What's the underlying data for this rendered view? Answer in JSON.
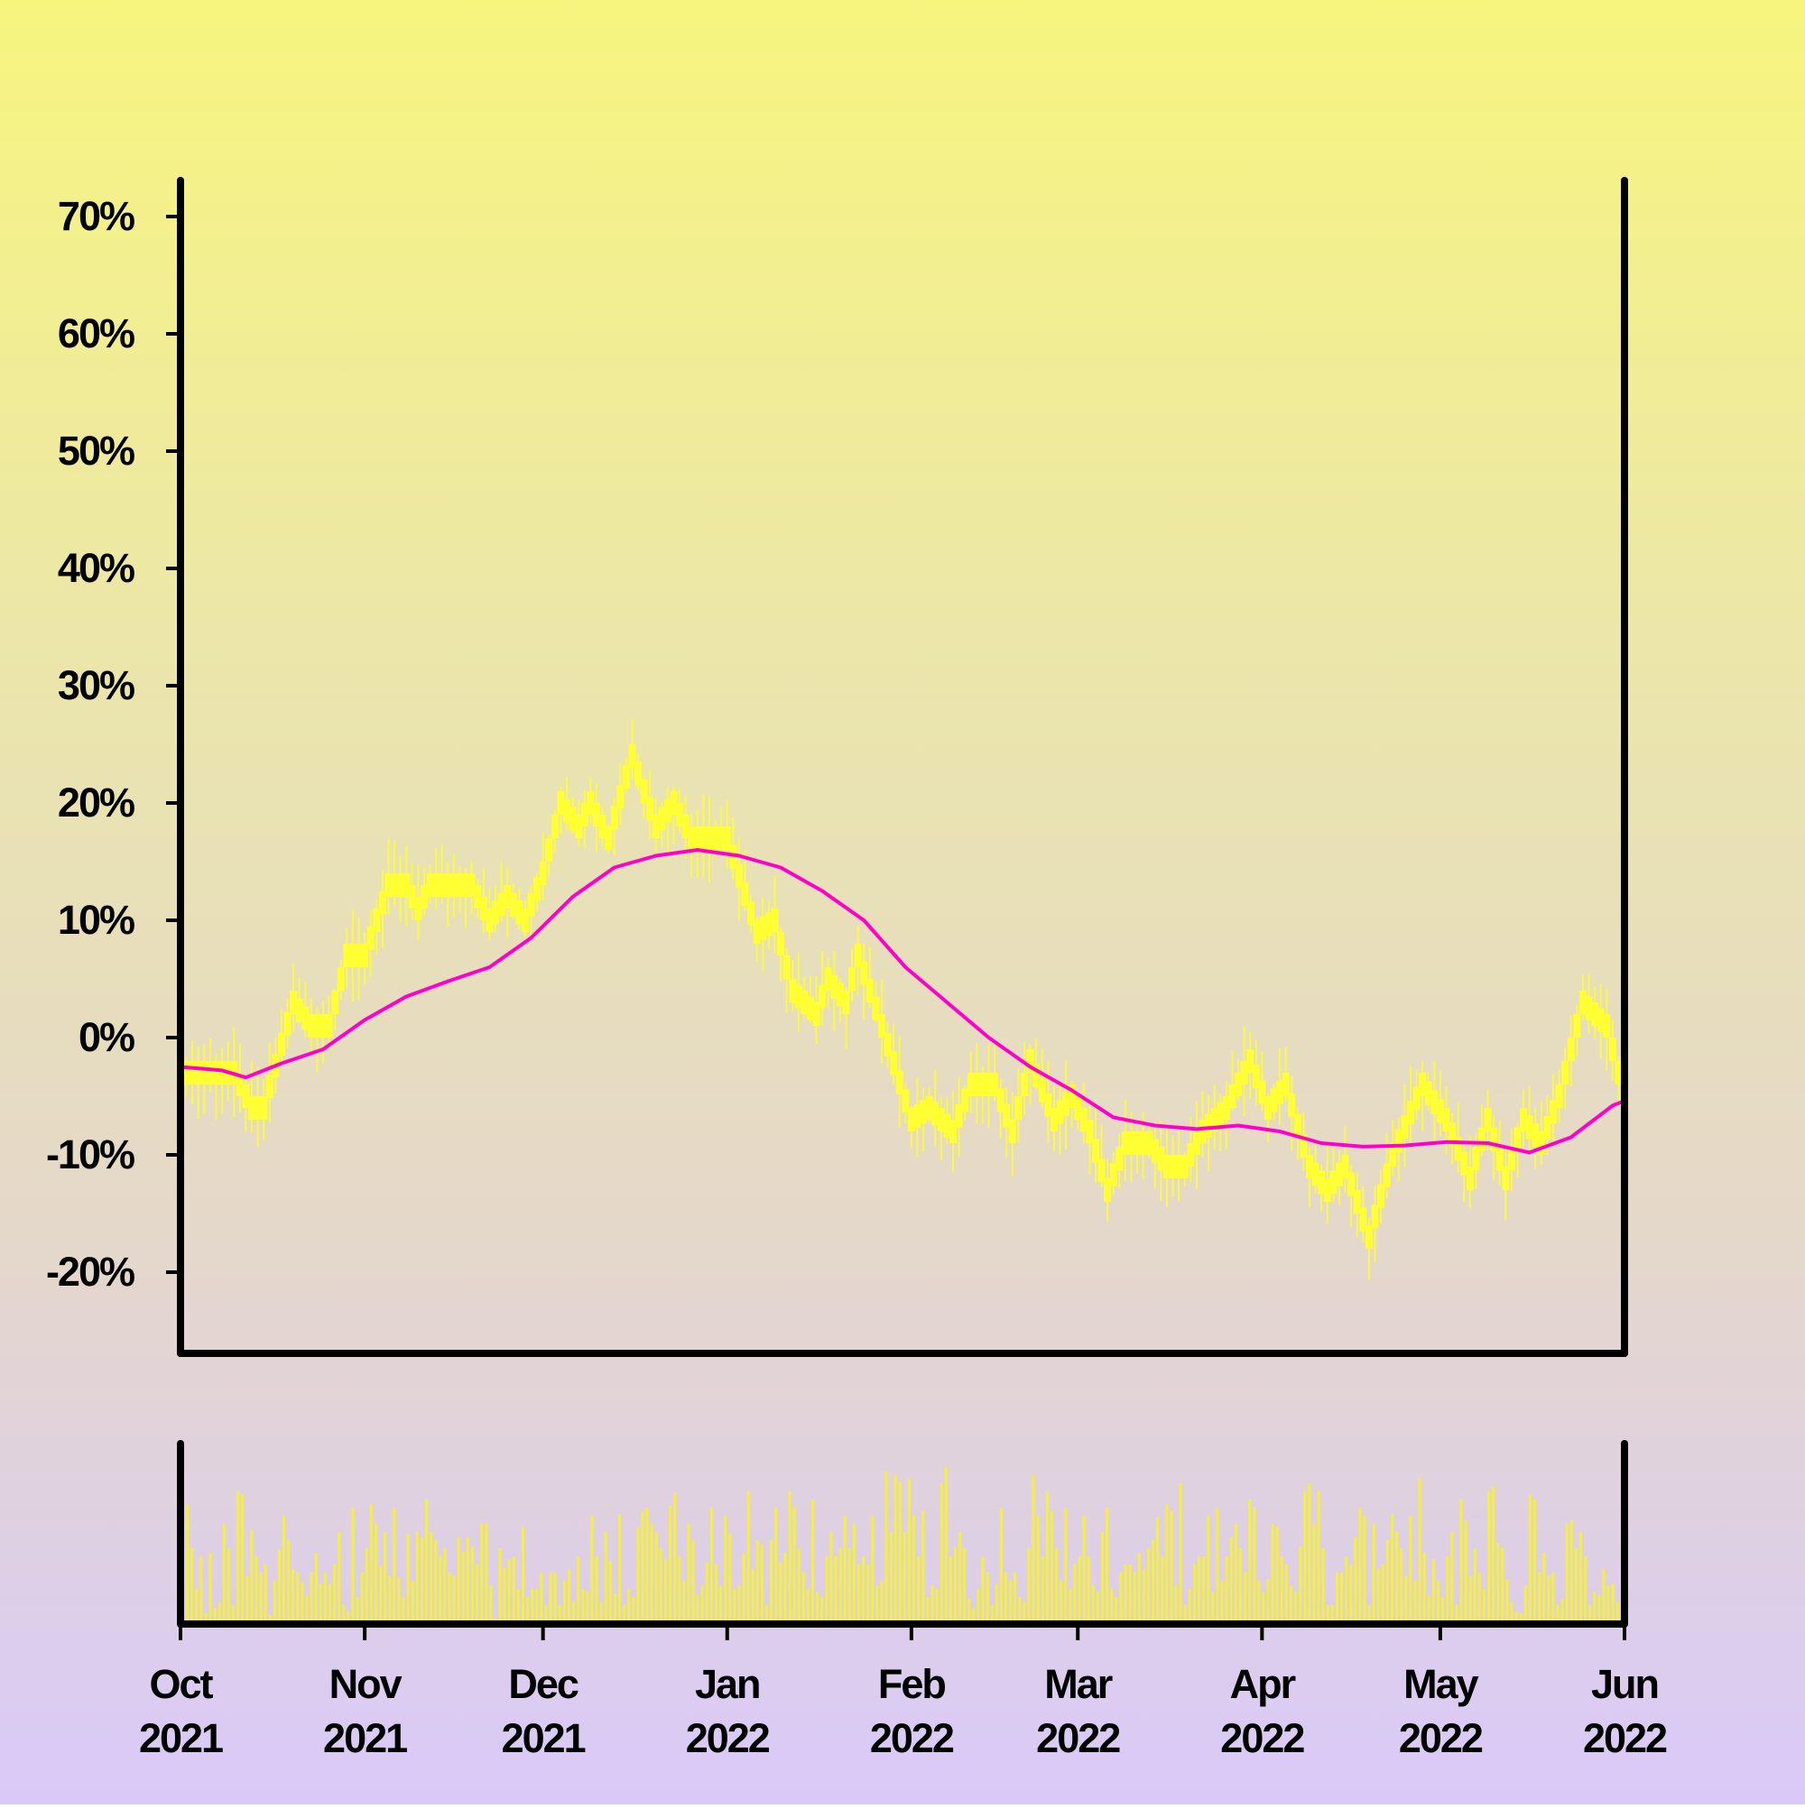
{
  "chart_data": {
    "type": "candlestick_with_volume",
    "y_unit": "%",
    "ylim": [
      -26,
      73
    ],
    "yticks": [
      -20,
      -10,
      0,
      10,
      20,
      30,
      40,
      50,
      60,
      70
    ],
    "ytick_labels": [
      "-20%",
      "-10%",
      "0%",
      "10%",
      "20%",
      "30%",
      "40%",
      "50%",
      "60%",
      "70%"
    ],
    "x_range": [
      "2021-10-01",
      "2022-06-01"
    ],
    "xticks": [
      {
        "date": "2021-10-01",
        "month": "Oct",
        "year": "2021"
      },
      {
        "date": "2021-11-01",
        "month": "Nov",
        "year": "2021"
      },
      {
        "date": "2021-12-01",
        "month": "Dec",
        "year": "2021"
      },
      {
        "date": "2022-01-01",
        "month": "Jan",
        "year": "2022"
      },
      {
        "date": "2022-02-01",
        "month": "Feb",
        "year": "2022"
      },
      {
        "date": "2022-03-01",
        "month": "Mar",
        "year": "2022"
      },
      {
        "date": "2022-04-01",
        "month": "Apr",
        "year": "2022"
      },
      {
        "date": "2022-05-01",
        "month": "May",
        "year": "2022"
      },
      {
        "date": "2022-06-01",
        "month": "Jun",
        "year": "2022"
      }
    ],
    "grid": false,
    "colors": {
      "price": "#ffff33",
      "moving_average": "#ff00cc",
      "volume": "#f4f03c",
      "axes": "#000000"
    },
    "price_series": {
      "name": "",
      "points": [
        {
          "date": "2021-10-01",
          "value": -3
        },
        {
          "date": "2021-10-10",
          "value": -3
        },
        {
          "date": "2021-10-13",
          "value": -6
        },
        {
          "date": "2021-10-15",
          "value": -6
        },
        {
          "date": "2021-10-20",
          "value": 3
        },
        {
          "date": "2021-10-23",
          "value": 1
        },
        {
          "date": "2021-10-26",
          "value": 1
        },
        {
          "date": "2021-10-29",
          "value": 7
        },
        {
          "date": "2021-11-01",
          "value": 7
        },
        {
          "date": "2021-11-05",
          "value": 13
        },
        {
          "date": "2021-11-08",
          "value": 13
        },
        {
          "date": "2021-11-10",
          "value": 11
        },
        {
          "date": "2021-11-12",
          "value": 13
        },
        {
          "date": "2021-11-19",
          "value": 13
        },
        {
          "date": "2021-11-22",
          "value": 10
        },
        {
          "date": "2021-11-25",
          "value": 12
        },
        {
          "date": "2021-11-28",
          "value": 10
        },
        {
          "date": "2021-12-01",
          "value": 14
        },
        {
          "date": "2021-12-04",
          "value": 20
        },
        {
          "date": "2021-12-07",
          "value": 18
        },
        {
          "date": "2021-12-09",
          "value": 20
        },
        {
          "date": "2021-12-12",
          "value": 17
        },
        {
          "date": "2021-12-16",
          "value": 24
        },
        {
          "date": "2021-12-20",
          "value": 18
        },
        {
          "date": "2021-12-23",
          "value": 20
        },
        {
          "date": "2021-12-26",
          "value": 17
        },
        {
          "date": "2022-01-01",
          "value": 17
        },
        {
          "date": "2022-01-06",
          "value": 9
        },
        {
          "date": "2022-01-09",
          "value": 10
        },
        {
          "date": "2022-01-12",
          "value": 4
        },
        {
          "date": "2022-01-16",
          "value": 2
        },
        {
          "date": "2022-01-18",
          "value": 5
        },
        {
          "date": "2022-01-21",
          "value": 3
        },
        {
          "date": "2022-01-23",
          "value": 7
        },
        {
          "date": "2022-01-27",
          "value": 1
        },
        {
          "date": "2022-02-01",
          "value": -7
        },
        {
          "date": "2022-02-04",
          "value": -6
        },
        {
          "date": "2022-02-08",
          "value": -8
        },
        {
          "date": "2022-02-11",
          "value": -4
        },
        {
          "date": "2022-02-15",
          "value": -4
        },
        {
          "date": "2022-02-18",
          "value": -8
        },
        {
          "date": "2022-02-21",
          "value": -2
        },
        {
          "date": "2022-02-25",
          "value": -7
        },
        {
          "date": "2022-02-28",
          "value": -5
        },
        {
          "date": "2022-03-03",
          "value": -8
        },
        {
          "date": "2022-03-06",
          "value": -13
        },
        {
          "date": "2022-03-09",
          "value": -9
        },
        {
          "date": "2022-03-13",
          "value": -9
        },
        {
          "date": "2022-03-16",
          "value": -11
        },
        {
          "date": "2022-03-19",
          "value": -11
        },
        {
          "date": "2022-03-22",
          "value": -8
        },
        {
          "date": "2022-03-26",
          "value": -6
        },
        {
          "date": "2022-03-30",
          "value": -2
        },
        {
          "date": "2022-04-02",
          "value": -6
        },
        {
          "date": "2022-04-05",
          "value": -4
        },
        {
          "date": "2022-04-09",
          "value": -11
        },
        {
          "date": "2022-04-12",
          "value": -13
        },
        {
          "date": "2022-04-15",
          "value": -11
        },
        {
          "date": "2022-04-19",
          "value": -17
        },
        {
          "date": "2022-04-23",
          "value": -10
        },
        {
          "date": "2022-04-28",
          "value": -4
        },
        {
          "date": "2022-05-02",
          "value": -7
        },
        {
          "date": "2022-05-06",
          "value": -12
        },
        {
          "date": "2022-05-09",
          "value": -7
        },
        {
          "date": "2022-05-12",
          "value": -12
        },
        {
          "date": "2022-05-15",
          "value": -7
        },
        {
          "date": "2022-05-18",
          "value": -9
        },
        {
          "date": "2022-05-21",
          "value": -5
        },
        {
          "date": "2022-05-25",
          "value": 3
        },
        {
          "date": "2022-05-29",
          "value": 1
        },
        {
          "date": "2022-06-01",
          "value": -5
        }
      ]
    },
    "moving_average": {
      "name": "",
      "points": [
        {
          "date": "2021-10-01",
          "value": -2.5
        },
        {
          "date": "2021-10-08",
          "value": -2.8
        },
        {
          "date": "2021-10-12",
          "value": -3.4
        },
        {
          "date": "2021-10-18",
          "value": -2.2
        },
        {
          "date": "2021-10-25",
          "value": -1.0
        },
        {
          "date": "2021-11-01",
          "value": 1.5
        },
        {
          "date": "2021-11-08",
          "value": 3.5
        },
        {
          "date": "2021-11-15",
          "value": 4.8
        },
        {
          "date": "2021-11-22",
          "value": 6.0
        },
        {
          "date": "2021-11-29",
          "value": 8.5
        },
        {
          "date": "2021-12-06",
          "value": 12.0
        },
        {
          "date": "2021-12-13",
          "value": 14.5
        },
        {
          "date": "2021-12-20",
          "value": 15.5
        },
        {
          "date": "2021-12-27",
          "value": 16.0
        },
        {
          "date": "2022-01-03",
          "value": 15.5
        },
        {
          "date": "2022-01-10",
          "value": 14.5
        },
        {
          "date": "2022-01-17",
          "value": 12.5
        },
        {
          "date": "2022-01-24",
          "value": 10.0
        },
        {
          "date": "2022-01-31",
          "value": 6.0
        },
        {
          "date": "2022-02-07",
          "value": 3.0
        },
        {
          "date": "2022-02-14",
          "value": 0.0
        },
        {
          "date": "2022-02-21",
          "value": -2.5
        },
        {
          "date": "2022-02-28",
          "value": -4.5
        },
        {
          "date": "2022-03-07",
          "value": -6.8
        },
        {
          "date": "2022-03-14",
          "value": -7.5
        },
        {
          "date": "2022-03-21",
          "value": -7.8
        },
        {
          "date": "2022-03-28",
          "value": -7.5
        },
        {
          "date": "2022-04-04",
          "value": -8.0
        },
        {
          "date": "2022-04-11",
          "value": -9.0
        },
        {
          "date": "2022-04-18",
          "value": -9.3
        },
        {
          "date": "2022-04-25",
          "value": -9.2
        },
        {
          "date": "2022-05-02",
          "value": -8.9
        },
        {
          "date": "2022-05-09",
          "value": -9.0
        },
        {
          "date": "2022-05-16",
          "value": -9.8
        },
        {
          "date": "2022-05-23",
          "value": -8.5
        },
        {
          "date": "2022-05-30",
          "value": -5.8
        },
        {
          "date": "2022-06-01",
          "value": -5.4
        }
      ]
    },
    "volume_series": {
      "name": "",
      "ylim": [
        0,
        100
      ],
      "values": [
        72,
        45,
        20,
        40,
        5,
        42,
        8,
        12,
        60,
        45,
        10,
        80,
        78,
        28,
        56,
        40,
        30,
        35,
        4,
        25,
        44,
        65,
        50,
        32,
        30,
        24,
        16,
        30,
        42,
        23,
        30,
        23,
        35,
        55,
        10,
        6,
        70,
        15,
        30,
        45,
        72,
        60,
        34,
        55,
        28,
        70,
        27,
        15,
        54,
        25,
        55,
        52,
        75,
        55,
        50,
        40,
        45,
        30,
        28,
        52,
        43,
        52,
        46,
        35,
        60,
        60,
        22,
        2,
        45,
        33,
        38,
        40,
        20,
        58,
        15,
        20,
        20,
        30,
        10,
        30,
        30,
        10,
        25,
        32,
        12,
        40,
        20,
        18,
        65,
        40,
        12,
        55,
        37,
        17,
        66,
        10,
        20,
        15,
        58,
        68,
        70,
        60,
        55,
        45,
        38,
        71,
        79,
        40,
        25,
        60,
        50,
        16,
        22,
        36,
        70,
        35,
        22,
        65,
        54,
        20,
        22,
        42,
        80,
        32,
        50,
        47,
        10,
        50,
        70,
        36,
        42,
        80,
        70,
        45,
        30,
        20,
        75,
        18,
        15,
        40,
        55,
        40,
        45,
        65,
        45,
        60,
        35,
        40,
        35,
        65,
        22,
        25,
        92,
        55,
        90,
        86,
        55,
        88,
        65,
        40,
        68,
        15,
        22,
        20,
        85,
        95,
        40,
        46,
        55,
        45,
        14,
        8,
        20,
        40,
        30,
        10,
        23,
        70,
        30,
        25,
        30,
        15,
        12,
        45,
        90,
        65,
        40,
        80,
        68,
        45,
        25,
        70,
        20,
        35,
        40,
        65,
        40,
        22,
        18,
        55,
        70,
        20,
        15,
        30,
        35,
        35,
        30,
        42,
        32,
        45,
        50,
        64,
        40,
        72,
        68,
        22,
        85,
        10,
        20,
        35,
        40,
        40,
        65,
        18,
        70,
        25,
        40,
        52,
        60,
        45,
        30,
        75,
        70,
        25,
        18,
        26,
        60,
        58,
        40,
        35,
        22,
        18,
        46,
        80,
        85,
        60,
        80,
        45,
        10,
        10,
        30,
        30,
        40,
        35,
        52,
        70,
        65,
        10,
        60,
        32,
        35,
        50,
        66,
        55,
        45,
        28,
        65,
        25,
        88,
        42,
        16,
        38,
        25,
        15,
        40,
        55,
        10,
        75,
        62,
        28,
        45,
        30,
        20,
        80,
        83,
        48,
        45,
        26,
        12,
        6,
        5,
        22,
        78,
        75,
        30,
        42,
        28,
        30,
        10,
        14,
        60,
        62,
        45,
        55,
        40,
        10,
        18,
        16,
        32,
        22,
        23,
        12,
        6,
        4
      ]
    }
  }
}
